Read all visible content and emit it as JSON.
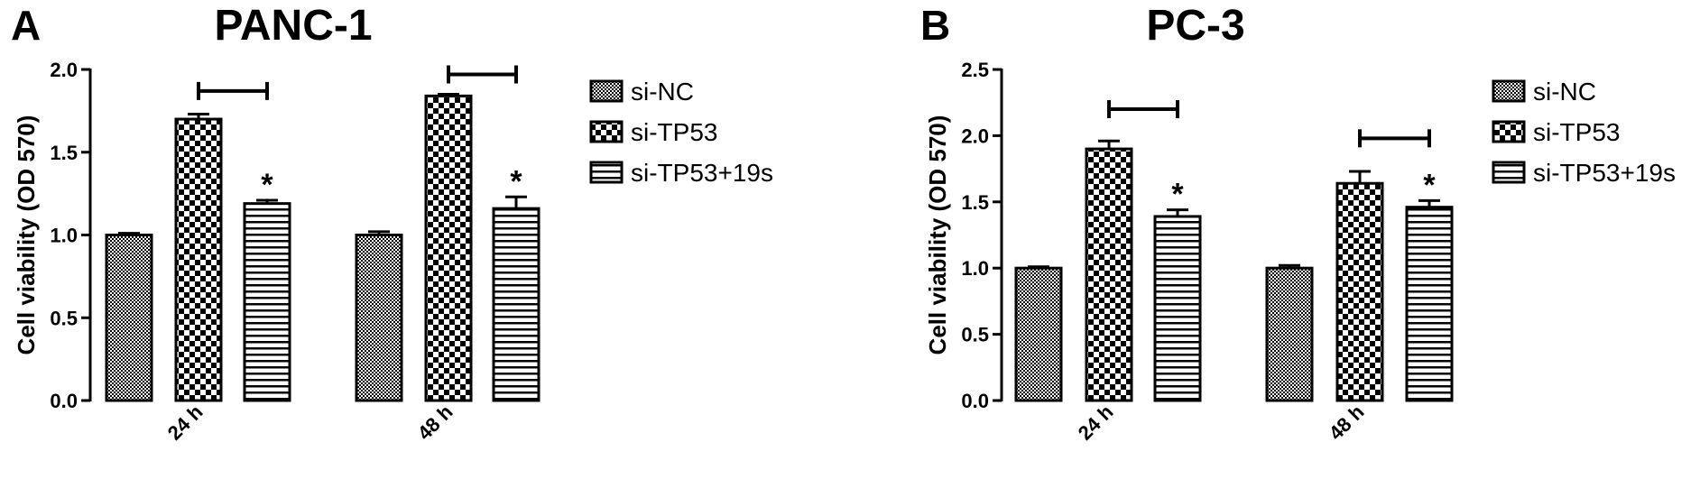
{
  "chart_data": [
    {
      "type": "bar",
      "panel": "A",
      "title": "PANC-1",
      "ylabel": "Cell viability (OD 570)",
      "xlabel": "",
      "ylim": [
        0,
        2.0
      ],
      "yticks": [
        "0.0",
        "0.5",
        "1.0",
        "1.5",
        "2.0"
      ],
      "categories": [
        "24 h",
        "48 h"
      ],
      "series": [
        {
          "name": "si-NC",
          "pattern": "dots",
          "values": [
            1.0,
            1.0
          ],
          "errors": [
            0.01,
            0.02
          ]
        },
        {
          "name": "si-TP53",
          "pattern": "checker",
          "values": [
            1.7,
            1.84
          ],
          "errors": [
            0.03,
            0.01
          ]
        },
        {
          "name": "si-TP53+19s",
          "pattern": "stripes",
          "values": [
            1.19,
            1.16
          ],
          "errors": [
            0.02,
            0.07
          ]
        }
      ],
      "significance": [
        {
          "category": 0,
          "from_series": 1,
          "to_series": 2,
          "bracket_y": 1.87,
          "star_on_series": 2,
          "label": "*"
        },
        {
          "category": 1,
          "from_series": 1,
          "to_series": 2,
          "bracket_y": 1.97,
          "star_on_series": 2,
          "label": "*"
        }
      ],
      "legend": "right"
    },
    {
      "type": "bar",
      "panel": "B",
      "title": "PC-3",
      "ylabel": "Cell viability (OD 570)",
      "xlabel": "",
      "ylim": [
        0,
        2.5
      ],
      "yticks": [
        "0.0",
        "0.5",
        "1.0",
        "1.5",
        "2.0",
        "2.5"
      ],
      "categories": [
        "24 h",
        "48 h"
      ],
      "series": [
        {
          "name": "si-NC",
          "pattern": "dots",
          "values": [
            1.0,
            1.0
          ],
          "errors": [
            0.01,
            0.02
          ]
        },
        {
          "name": "si-TP53",
          "pattern": "checker",
          "values": [
            1.9,
            1.64
          ],
          "errors": [
            0.06,
            0.09
          ]
        },
        {
          "name": "si-TP53+19s",
          "pattern": "stripes",
          "values": [
            1.39,
            1.46
          ],
          "errors": [
            0.05,
            0.05
          ]
        }
      ],
      "significance": [
        {
          "category": 0,
          "from_series": 1,
          "to_series": 2,
          "bracket_y": 2.2,
          "star_on_series": 2,
          "label": "*"
        },
        {
          "category": 1,
          "from_series": 1,
          "to_series": 2,
          "bracket_y": 1.98,
          "star_on_series": 2,
          "label": "*"
        }
      ],
      "legend": "right"
    }
  ]
}
